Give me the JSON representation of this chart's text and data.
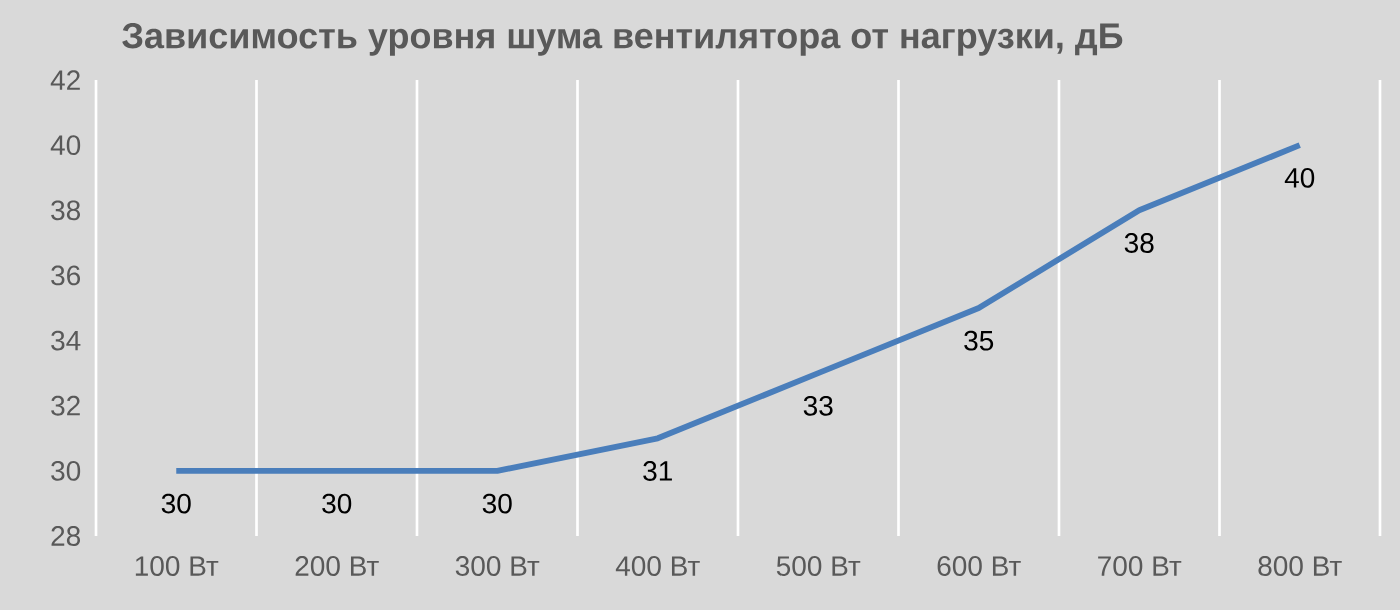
{
  "chart_data": {
    "type": "line",
    "title": "Зависимость уровня шума вентилятора от нагрузки, дБ",
    "categories": [
      "100 Вт",
      "200 Вт",
      "300 Вт",
      "400 Вт",
      "500 Вт",
      "600 Вт",
      "700 Вт",
      "800 Вт"
    ],
    "values": [
      30,
      30,
      30,
      31,
      33,
      35,
      38,
      40
    ],
    "color": "#4a7ebb",
    "ylim": [
      28,
      42
    ],
    "yticks": [
      28,
      30,
      32,
      34,
      36,
      38,
      40,
      42
    ],
    "grid": "x",
    "data_labels": true,
    "marker": "none",
    "line_style": "solid"
  }
}
